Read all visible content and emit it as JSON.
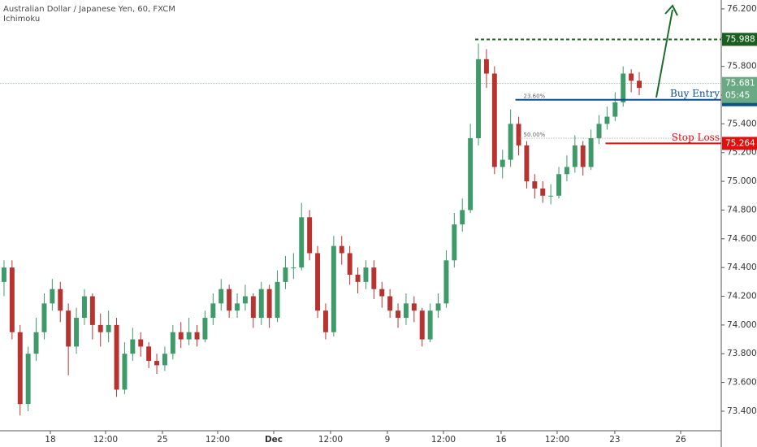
{
  "chart_data": {
    "type": "candlestick",
    "title": "Australian Dollar / Japanese Yen, 60, FXCM",
    "subtitle": "Ichimoku",
    "up_color": "#3f9a6a",
    "down_color": "#b8322f",
    "xlim": [
      -0.5,
      89.2
    ],
    "xticks": [
      {
        "value": 5.76,
        "label": "18"
      },
      {
        "value": 12.63,
        "label": "12:00"
      },
      {
        "value": 19.7,
        "label": "25"
      },
      {
        "value": 26.57,
        "label": "12:00"
      },
      {
        "value": 33.54,
        "label": "Dec"
      },
      {
        "value": 40.61,
        "label": "12:00"
      },
      {
        "value": 47.68,
        "label": "9"
      },
      {
        "value": 54.65,
        "label": "12:00"
      },
      {
        "value": 61.82,
        "label": "16"
      },
      {
        "value": 68.79,
        "label": "12:00"
      },
      {
        "value": 75.96,
        "label": "23"
      },
      {
        "value": 84.15,
        "label": "26"
      }
    ],
    "ylim": [
      73.264,
      76.262
    ],
    "yticks": [
      {
        "value": 73.4,
        "label": "73.400"
      },
      {
        "value": 73.6,
        "label": "73.600"
      },
      {
        "value": 73.8,
        "label": "73.800"
      },
      {
        "value": 74.0,
        "label": "74.000"
      },
      {
        "value": 74.2,
        "label": "74.200"
      },
      {
        "value": 74.4,
        "label": "74.400"
      },
      {
        "value": 74.6,
        "label": "74.600"
      },
      {
        "value": 74.8,
        "label": "74.800"
      },
      {
        "value": 75.0,
        "label": "75.000"
      },
      {
        "value": 75.2,
        "label": "75.200"
      },
      {
        "value": 75.4,
        "label": "75.400"
      },
      {
        "value": 75.6,
        "label": "75.600"
      },
      {
        "value": 75.8,
        "label": "75.800"
      },
      {
        "value": 76.0,
        "label": "76.000"
      },
      {
        "value": 76.2,
        "label": "76.200"
      }
    ],
    "x": [
      0,
      1,
      2,
      3,
      4,
      5,
      6,
      7,
      8,
      9,
      10,
      11,
      12,
      13,
      14,
      15,
      16,
      17,
      18,
      19,
      20,
      21,
      22,
      23,
      24,
      25,
      26,
      27,
      28,
      29,
      30,
      31,
      32,
      33,
      34,
      35,
      36,
      37,
      38,
      39,
      40,
      41,
      42,
      43,
      44,
      45,
      46,
      47,
      48,
      49,
      50,
      51,
      52,
      53,
      54,
      55,
      56,
      57,
      58,
      59,
      60,
      61,
      62,
      63,
      64,
      65,
      66,
      67,
      68,
      69,
      70,
      71,
      72,
      73,
      74,
      75,
      76,
      77,
      78,
      79
    ],
    "open": [
      74.3,
      74.4,
      73.95,
      73.45,
      73.8,
      73.95,
      74.15,
      74.25,
      74.1,
      73.85,
      74.05,
      74.2,
      74.0,
      73.95,
      74.0,
      73.55,
      73.8,
      73.9,
      73.85,
      73.75,
      73.72,
      73.8,
      73.95,
      73.9,
      73.95,
      73.9,
      74.05,
      74.15,
      74.25,
      74.1,
      74.15,
      74.2,
      74.05,
      74.25,
      74.05,
      74.3,
      74.4,
      74.4,
      74.75,
      74.5,
      74.1,
      73.95,
      74.55,
      74.5,
      74.35,
      74.3,
      74.4,
      74.25,
      74.2,
      74.1,
      74.05,
      74.15,
      74.1,
      73.9,
      74.1,
      74.15,
      74.45,
      74.7,
      74.8,
      75.3,
      75.85,
      75.75,
      75.1,
      75.15,
      75.4,
      75.25,
      75.0,
      74.95,
      74.9,
      74.9,
      75.05,
      75.1,
      75.25,
      75.1,
      75.3,
      75.4,
      75.45,
      75.55,
      75.75,
      75.7
    ],
    "high": [
      74.45,
      74.45,
      74.0,
      73.85,
      74.05,
      74.22,
      74.32,
      74.3,
      74.15,
      74.12,
      74.25,
      74.22,
      74.08,
      74.1,
      74.05,
      73.88,
      73.98,
      73.95,
      73.88,
      73.8,
      73.85,
      74.0,
      74.02,
      74.05,
      74.0,
      74.1,
      74.22,
      74.32,
      74.28,
      74.22,
      74.28,
      74.22,
      74.3,
      74.28,
      74.38,
      74.48,
      74.5,
      74.85,
      74.8,
      74.55,
      74.15,
      74.62,
      74.62,
      74.55,
      74.4,
      74.45,
      74.45,
      74.3,
      74.25,
      74.15,
      74.22,
      74.2,
      74.12,
      74.15,
      74.22,
      74.52,
      74.78,
      74.88,
      75.4,
      75.96,
      75.92,
      75.8,
      75.22,
      75.5,
      75.45,
      75.28,
      75.05,
      75.0,
      74.98,
      75.1,
      75.18,
      75.32,
      75.28,
      75.36,
      75.46,
      75.52,
      75.62,
      75.8,
      75.78,
      75.76
    ],
    "low": [
      74.2,
      73.9,
      73.37,
      73.4,
      73.75,
      73.9,
      74.1,
      74.02,
      73.65,
      73.8,
      74.0,
      73.9,
      73.85,
      73.88,
      73.5,
      73.52,
      73.75,
      73.78,
      73.7,
      73.66,
      73.68,
      73.76,
      73.84,
      73.86,
      73.85,
      73.88,
      74.0,
      74.1,
      74.05,
      74.05,
      74.1,
      73.98,
      74.0,
      73.98,
      74.02,
      74.25,
      74.32,
      74.38,
      74.45,
      74.05,
      73.9,
      73.92,
      74.42,
      74.28,
      74.22,
      74.25,
      74.18,
      74.12,
      74.05,
      73.98,
      74.0,
      74.02,
      73.85,
      73.88,
      74.05,
      74.12,
      74.4,
      74.65,
      74.78,
      75.25,
      75.65,
      75.05,
      75.02,
      75.1,
      75.18,
      74.95,
      74.88,
      74.85,
      74.84,
      74.88,
      75.0,
      75.06,
      75.04,
      75.08,
      75.26,
      75.36,
      75.42,
      75.52,
      75.62,
      75.6
    ],
    "close": [
      74.4,
      73.95,
      73.45,
      73.8,
      73.95,
      74.15,
      74.25,
      74.1,
      73.85,
      74.05,
      74.2,
      74.0,
      73.95,
      74.0,
      73.55,
      73.8,
      73.9,
      73.85,
      73.75,
      73.72,
      73.8,
      73.95,
      73.9,
      73.95,
      73.9,
      74.05,
      74.15,
      74.25,
      74.1,
      74.15,
      74.2,
      74.05,
      74.25,
      74.05,
      74.3,
      74.4,
      74.4,
      74.75,
      74.5,
      74.1,
      73.95,
      74.55,
      74.5,
      74.35,
      74.3,
      74.4,
      74.25,
      74.2,
      74.1,
      74.05,
      74.15,
      74.1,
      73.9,
      74.1,
      74.15,
      74.45,
      74.7,
      74.8,
      75.3,
      75.85,
      75.75,
      75.1,
      75.15,
      75.4,
      75.25,
      75.0,
      74.95,
      74.9,
      74.9,
      75.05,
      75.1,
      75.25,
      75.1,
      75.3,
      75.4,
      75.45,
      75.55,
      75.75,
      75.7,
      75.65
    ],
    "levels": [
      {
        "value": 75.988,
        "color": "#1b5e20",
        "from": 58.6,
        "dash": true
      },
      {
        "name": "Buy Entry",
        "value": 75.568,
        "color": "#0d4f91",
        "from": 63.6,
        "dash": false
      },
      {
        "name": "Stop Loss",
        "value": 75.264,
        "color": "#e01010",
        "from": 74.8,
        "dash": false
      }
    ],
    "current": {
      "value": 75.681,
      "countdown": "05:45",
      "color": "#69a983"
    },
    "fib": [
      {
        "label": "23.60%",
        "value": 75.568,
        "from": 64.1
      },
      {
        "label": "50.00%",
        "value": 75.3,
        "from": 64.1
      }
    ]
  }
}
